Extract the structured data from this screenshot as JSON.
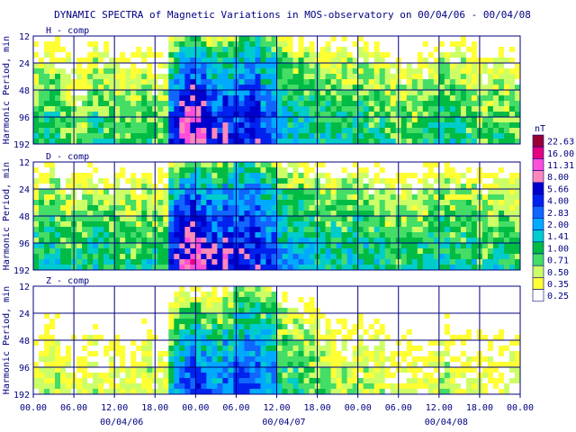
{
  "chart_data": {
    "type": "heatmap",
    "title": "DYNAMIC SPECTRA of Magnetic Variations in MOS-observatory on 00/04/06 - 00/04/08",
    "ylabel": "Harmonic Period, min",
    "y_ticks": [
      "12",
      "24",
      "48",
      "96",
      "192"
    ],
    "y_scale": "log2",
    "x_ticks": [
      "00.00",
      "06.00",
      "12.00",
      "18.00",
      "00.00",
      "06.00",
      "12.00",
      "18.00",
      "00.00",
      "06.00",
      "12.00",
      "18.00",
      "00.00"
    ],
    "x_hours": [
      0,
      6,
      12,
      18,
      24,
      30,
      36,
      42,
      48,
      54,
      60,
      66,
      72
    ],
    "date_labels": [
      {
        "text": "00/04/06",
        "at_hours": 12
      },
      {
        "text": "00/04/07",
        "at_hours": 36
      },
      {
        "text": "00/04/08",
        "at_hours": 60
      }
    ],
    "grid": true,
    "legend_placement": "right",
    "colorbar": {
      "unit": "nT",
      "levels": [
        "22.63",
        "16.00",
        "11.31",
        "8.00",
        "5.66",
        "4.00",
        "2.83",
        "2.00",
        "1.41",
        "1.00",
        "0.71",
        "0.50",
        "0.35",
        "0.25"
      ],
      "colors": [
        "#990033",
        "#e6007e",
        "#ff4fd8",
        "#ff88bb",
        "#0000cc",
        "#0022ee",
        "#1166ff",
        "#00aaff",
        "#00cccc",
        "#00bb44",
        "#44dd66",
        "#ccff66",
        "#ffff33",
        "#ffffff"
      ]
    },
    "panels": [
      {
        "label": "H - comp",
        "storm_peak": 6,
        "intensity": [
          0.55,
          0.6,
          0.5,
          0.45,
          0.6,
          0.55,
          0.5,
          0.5,
          0.55,
          0.5,
          0.55,
          0.65,
          0.6,
          0.55,
          0.8,
          1.2,
          1.3,
          1.0,
          0.75,
          0.7,
          0.65,
          0.6,
          0.6,
          0.6,
          0.6,
          0.55,
          0.5,
          0.5,
          0.5,
          0.55,
          0.6,
          0.6,
          0.55,
          0.5,
          0.55,
          0.5
        ]
      },
      {
        "label": "D - comp",
        "storm_peak": 6,
        "intensity": [
          0.6,
          0.65,
          0.55,
          0.55,
          0.65,
          0.6,
          0.55,
          0.55,
          0.6,
          0.55,
          0.6,
          0.65,
          0.6,
          0.6,
          0.9,
          1.3,
          1.25,
          1.05,
          0.8,
          0.75,
          0.7,
          0.65,
          0.65,
          0.65,
          0.65,
          0.6,
          0.55,
          0.55,
          0.55,
          0.6,
          0.65,
          0.6,
          0.6,
          0.55,
          0.6,
          0.55
        ]
      },
      {
        "label": "Z - comp",
        "storm_peak": 4,
        "intensity": [
          0.35,
          0.4,
          0.35,
          0.35,
          0.4,
          0.35,
          0.35,
          0.35,
          0.4,
          0.35,
          0.4,
          0.45,
          0.45,
          0.45,
          0.65,
          0.95,
          1.0,
          0.85,
          0.6,
          0.55,
          0.5,
          0.45,
          0.4,
          0.4,
          0.4,
          0.4,
          0.35,
          0.35,
          0.35,
          0.35,
          0.4,
          0.35,
          0.35,
          0.35,
          0.35,
          0.35
        ]
      }
    ]
  }
}
